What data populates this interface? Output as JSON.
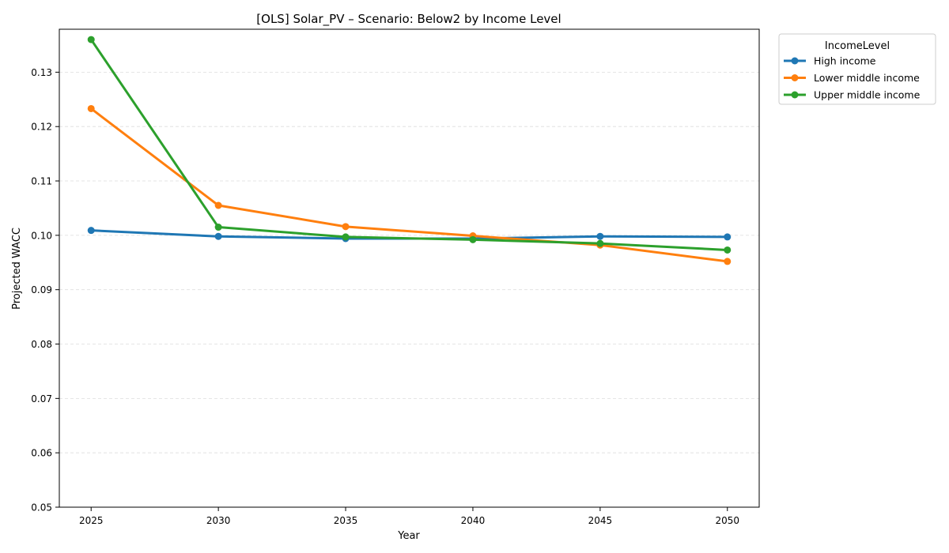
{
  "chart_data": {
    "type": "line",
    "title": "[OLS] Solar_PV – Scenario: Below2 by Income Level",
    "xlabel": "Year",
    "ylabel": "Projected WACC",
    "x": [
      2025,
      2030,
      2035,
      2040,
      2045,
      2050
    ],
    "x_ticks": [
      "2025",
      "2030",
      "2035",
      "2040",
      "2045",
      "2050"
    ],
    "xlim": [
      2023.75,
      2051.25
    ],
    "ylim": [
      0.05,
      0.1379
    ],
    "y_ticks": [
      "0.05",
      "0.06",
      "0.07",
      "0.08",
      "0.09",
      "0.10",
      "0.11",
      "0.12",
      "0.13"
    ],
    "y_tick_values": [
      0.05,
      0.06,
      0.07,
      0.08,
      0.09,
      0.1,
      0.11,
      0.12,
      0.13
    ],
    "grid": "y-dashed",
    "legend": {
      "title": "IncomeLevel",
      "placement": "outside-top-right"
    },
    "series": [
      {
        "name": "High income",
        "color": "#1f77b4",
        "values": [
          0.1009,
          0.0998,
          0.0994,
          0.0994,
          0.0998,
          0.0997
        ]
      },
      {
        "name": "Lower middle income",
        "color": "#ff7f0e",
        "values": [
          0.1233,
          0.1055,
          0.1016,
          0.0999,
          0.0982,
          0.0952
        ]
      },
      {
        "name": "Upper middle income",
        "color": "#2ca02c",
        "values": [
          0.136,
          0.1015,
          0.0997,
          0.0992,
          0.0985,
          0.0973
        ]
      }
    ]
  }
}
